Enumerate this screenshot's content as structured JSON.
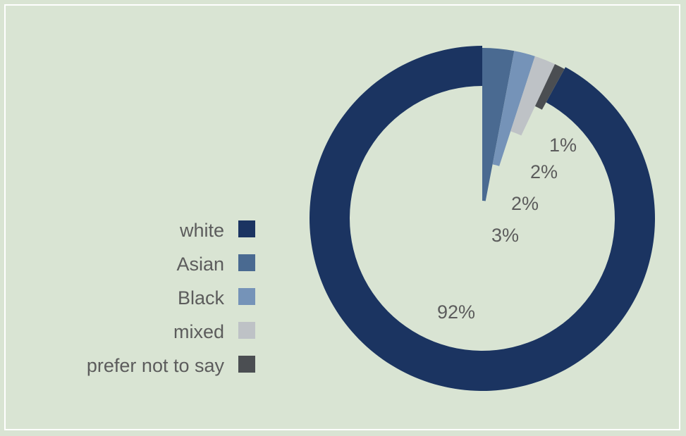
{
  "chart_data": {
    "type": "pie",
    "title": "",
    "categories": [
      "white",
      "Asian",
      "Black",
      "mixed",
      "prefer not to say"
    ],
    "values": [
      92,
      3,
      2,
      2,
      1
    ],
    "data_labels": [
      "92%",
      "3%",
      "2%",
      "2%",
      "1%"
    ],
    "colors": [
      "#1b3461",
      "#4a6a91",
      "#7593b8",
      "#bec2c6",
      "#4b4e52"
    ],
    "legend_position": "left",
    "style": "donut, exploded wedges"
  }
}
